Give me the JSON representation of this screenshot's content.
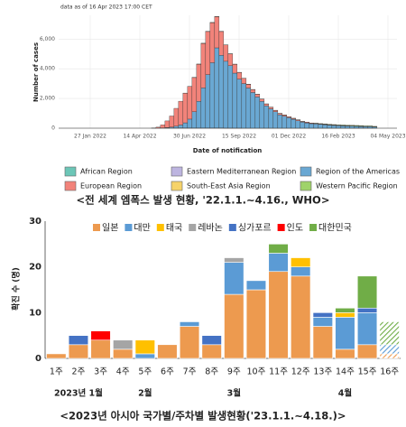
{
  "chart_data": [
    {
      "type": "bar",
      "note": "data as of 16 Apr 2023 17:00 CET",
      "xlabel": "Date of notification",
      "ylabel": "Number of cases",
      "caption": "<전 세계 엠폭스 발생 현황, '22.1.1.~4.16., WHO>",
      "x": [
        "2022-05-02",
        "2022-05-09",
        "2022-05-16",
        "2022-05-23",
        "2022-05-30",
        "2022-06-06",
        "2022-06-13",
        "2022-06-20",
        "2022-06-27",
        "2022-07-04",
        "2022-07-11",
        "2022-07-18",
        "2022-07-25",
        "2022-08-01",
        "2022-08-08",
        "2022-08-15",
        "2022-08-22",
        "2022-08-29",
        "2022-09-05",
        "2022-09-12",
        "2022-09-19",
        "2022-09-26",
        "2022-10-03",
        "2022-10-10",
        "2022-10-17",
        "2022-10-24",
        "2022-10-31",
        "2022-11-07",
        "2022-11-14",
        "2022-11-21",
        "2022-11-28",
        "2022-12-05",
        "2022-12-12",
        "2022-12-19",
        "2022-12-26",
        "2023-01-02",
        "2023-01-09",
        "2023-01-16",
        "2023-01-23",
        "2023-01-30",
        "2023-02-06",
        "2023-02-13",
        "2023-02-20",
        "2023-02-27",
        "2023-03-06",
        "2023-03-13",
        "2023-03-20",
        "2023-03-27",
        "2023-04-03",
        "2023-04-10"
      ],
      "series": [
        {
          "name": "African Region",
          "color": "#6cc6b7",
          "values": [
            5,
            10,
            10,
            10,
            10,
            15,
            15,
            10,
            10,
            10,
            10,
            10,
            10,
            10,
            10,
            10,
            5,
            5,
            5,
            5,
            5,
            5,
            5,
            5,
            5,
            5,
            5,
            5,
            5,
            5,
            5,
            5,
            5,
            5,
            5,
            5,
            5,
            5,
            5,
            5,
            5,
            5,
            5,
            5,
            5,
            5,
            5,
            5,
            5,
            5
          ]
        },
        {
          "name": "Eastern Mediterranean Region",
          "color": "#bdb5e0",
          "values": [
            0,
            0,
            2,
            2,
            2,
            2,
            2,
            2,
            2,
            2,
            2,
            2,
            2,
            2,
            2,
            2,
            2,
            2,
            2,
            2,
            0,
            0,
            0,
            0,
            0,
            0,
            0,
            0,
            0,
            0,
            0,
            0,
            0,
            0,
            0,
            0,
            0,
            0,
            0,
            0,
            0,
            0,
            0,
            0,
            0,
            0,
            0,
            0,
            0,
            0
          ]
        },
        {
          "name": "Region of the Americas",
          "color": "#6aa8d3",
          "values": [
            0,
            0,
            10,
            30,
            60,
            120,
            200,
            350,
            600,
            1100,
            1800,
            2700,
            3600,
            4400,
            5400,
            4900,
            4500,
            4200,
            3700,
            3300,
            3000,
            2700,
            2400,
            2100,
            1800,
            1500,
            1300,
            1100,
            900,
            800,
            700,
            600,
            500,
            400,
            350,
            300,
            280,
            250,
            230,
            200,
            180,
            160,
            150,
            140,
            130,
            120,
            110,
            100,
            100,
            80
          ]
        },
        {
          "name": "European Region",
          "color": "#f2837a",
          "values": [
            10,
            60,
            200,
            450,
            750,
            1200,
            1600,
            2000,
            2200,
            2300,
            2500,
            3000,
            2900,
            2700,
            2100,
            1600,
            1100,
            800,
            600,
            450,
            350,
            250,
            200,
            180,
            150,
            130,
            110,
            100,
            90,
            80,
            70,
            60,
            60,
            50,
            50,
            40,
            40,
            35,
            30,
            30,
            30,
            25,
            25,
            20,
            20,
            20,
            20,
            15,
            15,
            10
          ]
        },
        {
          "name": "South-East Asia Region",
          "color": "#f6d36a",
          "values": [
            0,
            0,
            0,
            0,
            0,
            0,
            0,
            0,
            0,
            2,
            2,
            2,
            2,
            2,
            2,
            2,
            2,
            2,
            2,
            2,
            2,
            2,
            0,
            0,
            0,
            0,
            0,
            0,
            0,
            0,
            0,
            0,
            0,
            0,
            0,
            0,
            0,
            0,
            0,
            0,
            0,
            0,
            0,
            0,
            0,
            0,
            0,
            0,
            0,
            0
          ]
        },
        {
          "name": "Western Pacific Region",
          "color": "#9fd36a",
          "values": [
            0,
            0,
            0,
            0,
            0,
            0,
            0,
            2,
            2,
            2,
            2,
            5,
            5,
            5,
            5,
            5,
            5,
            5,
            5,
            5,
            5,
            5,
            5,
            5,
            5,
            5,
            5,
            5,
            5,
            5,
            5,
            5,
            5,
            5,
            5,
            10,
            15,
            20,
            25,
            30,
            30,
            30,
            35,
            40,
            40,
            40,
            40,
            35,
            35,
            30
          ]
        }
      ],
      "xlim": [
        "2021-12-09",
        "2023-05-18"
      ],
      "xticks": [
        {
          "value": "2022-01-27",
          "label": "27 Jan 2022"
        },
        {
          "value": "2022-04-14",
          "label": "14 Apr 2022"
        },
        {
          "value": "2022-06-30",
          "label": "30 Jun 2022"
        },
        {
          "value": "2022-09-15",
          "label": "15 Sep 2022"
        },
        {
          "value": "2022-12-01",
          "label": "01 Dec 2022"
        },
        {
          "value": "2023-02-16",
          "label": "16 Feb 2023"
        },
        {
          "value": "2023-05-04",
          "label": "04 May 2023"
        }
      ],
      "ylim": [
        0,
        7600
      ],
      "yticks": [
        0,
        {
          "value": 2000,
          "label": "2,000"
        },
        {
          "value": 4000,
          "label": "4,000"
        },
        {
          "value": 6000,
          "label": "6,000"
        }
      ],
      "grid": true
    },
    {
      "type": "bar",
      "ylabel": "확진 수 (명)",
      "caption": "<2023년 아시아 국가별/주차별 발생현황('23.1.1.~4.18.)>",
      "categories": [
        "1주",
        "2주",
        "3주",
        "4주",
        "5주",
        "6주",
        "7주",
        "8주",
        "9주",
        "10주",
        "11주",
        "12주",
        "13주",
        "14주",
        "15주",
        "16주"
      ],
      "month_labels": [
        null,
        "2023년 1월",
        null,
        null,
        "2월",
        null,
        null,
        null,
        "3월",
        null,
        null,
        null,
        null,
        "4월",
        null,
        null
      ],
      "hatched": [
        false,
        false,
        false,
        false,
        false,
        false,
        false,
        false,
        false,
        false,
        false,
        false,
        false,
        false,
        false,
        true
      ],
      "series": [
        {
          "name": "일본",
          "color": "#ed9a4f",
          "values": [
            1,
            3,
            4,
            2,
            0,
            3,
            7,
            3,
            14,
            15,
            19,
            18,
            7,
            2,
            3,
            1
          ]
        },
        {
          "name": "대만",
          "color": "#5b9bd5",
          "values": [
            0,
            0,
            0,
            0,
            1,
            0,
            1,
            0,
            7,
            2,
            4,
            2,
            2,
            7,
            7,
            2
          ]
        },
        {
          "name": "태국",
          "color": "#ffc000",
          "values": [
            0,
            0,
            0,
            0,
            3,
            0,
            0,
            0,
            0,
            0,
            0,
            2,
            0,
            1,
            0,
            0
          ]
        },
        {
          "name": "레바논",
          "color": "#a5a5a5",
          "values": [
            0,
            0,
            0,
            2,
            0,
            0,
            0,
            0,
            1,
            0,
            0,
            0,
            0,
            0,
            0,
            0
          ]
        },
        {
          "name": "싱가포르",
          "color": "#4472c4",
          "values": [
            0,
            2,
            0,
            0,
            0,
            0,
            0,
            2,
            0,
            0,
            0,
            0,
            1,
            0,
            1,
            0
          ]
        },
        {
          "name": "인도",
          "color": "#ff0000",
          "values": [
            0,
            0,
            2,
            0,
            0,
            0,
            0,
            0,
            0,
            0,
            0,
            0,
            0,
            0,
            0,
            0
          ]
        },
        {
          "name": "대한민국",
          "color": "#70ad47",
          "values": [
            0,
            0,
            0,
            0,
            0,
            0,
            0,
            0,
            0,
            0,
            2,
            0,
            0,
            1,
            7,
            5
          ]
        }
      ],
      "ylim": [
        0,
        30
      ],
      "yticks": [
        0,
        10,
        20,
        30
      ],
      "grid": false
    }
  ]
}
